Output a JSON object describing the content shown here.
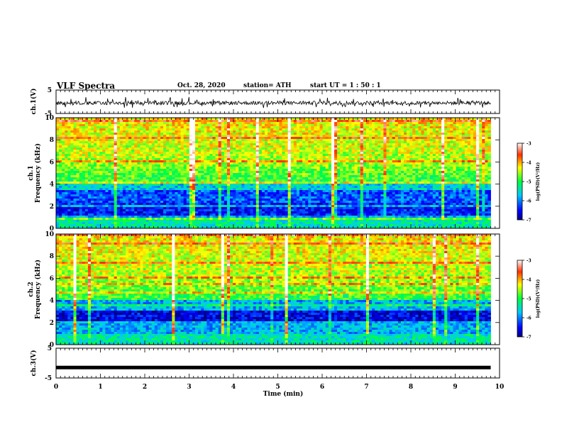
{
  "header": {
    "title": "VLF Spectra",
    "date": "Oct. 28, 2020",
    "station": "station= ATH",
    "start": "start  UT =   1 : 50 : 1"
  },
  "chart_data": [
    {
      "type": "line",
      "title": "",
      "xlabel": "",
      "ylabel": "ch.1(V)",
      "xlim": [
        0,
        10
      ],
      "ylim": [
        -5,
        5
      ],
      "yticks": [
        -5,
        5
      ],
      "series": [
        {
          "values_description": "noisy waveform centered near -0.5 V, fluctuating roughly between -2.5 and 1.5 V, ending at t=9.8 min"
        }
      ],
      "color": "#000000"
    },
    {
      "type": "heatmap",
      "title": "",
      "xlabel": "",
      "ylabel": "ch.1\nFrequency (kHz)",
      "xlim": [
        0,
        10
      ],
      "ylim": [
        0,
        10
      ],
      "yticks": [
        0,
        2,
        4,
        6,
        8,
        10
      ],
      "data_end_x": 9.8,
      "colorbar": {
        "label": "log(PSD)(V²/Hz)",
        "ticks": [
          -3,
          -4,
          -5,
          -6,
          -7
        ],
        "range": [
          -7,
          -3
        ]
      },
      "description": "log power spectral density; low values (blue) concentrated 0.5-3.5 kHz, high values (yellow/red) above 5 kHz with vertical impulsive streaks"
    },
    {
      "type": "heatmap",
      "title": "",
      "xlabel": "",
      "ylabel": "ch.2\nFrequency (kHz)",
      "xlim": [
        0,
        10
      ],
      "ylim": [
        0,
        10
      ],
      "yticks": [
        0,
        2,
        4,
        6,
        8,
        10
      ],
      "data_end_x": 9.8,
      "colorbar": {
        "label": "log(PSD)(V²/Hz)",
        "ticks": [
          -3,
          -4,
          -5,
          -6,
          -7
        ],
        "range": [
          -7,
          -3
        ]
      },
      "description": "log power spectral density; deep blue band near 2.5 kHz, green/yellow above 5 kHz with vertical streaks"
    },
    {
      "type": "line",
      "title": "",
      "xlabel": "Time  (min)",
      "ylabel": "ch.3(V)",
      "xlim": [
        0,
        10
      ],
      "xticks": [
        0,
        1,
        2,
        3,
        4,
        5,
        6,
        7,
        8,
        9,
        10
      ],
      "ylim": [
        -5,
        5
      ],
      "yticks": [
        -5,
        5
      ],
      "series": [
        {
          "values_description": "nearly constant thick line at about -1.5 V from t=0 to t=9.8 min"
        }
      ],
      "color": "#000000"
    }
  ]
}
